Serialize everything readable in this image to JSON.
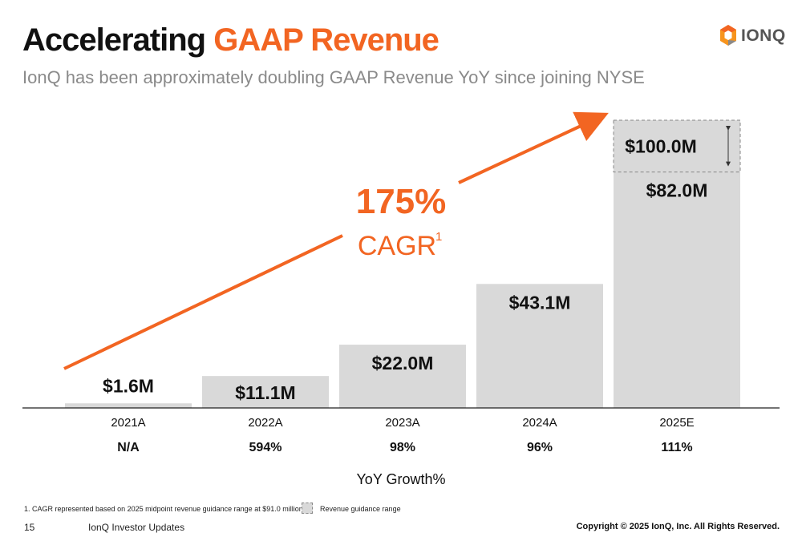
{
  "header": {
    "title_main": "Accelerating",
    "title_accent": "GAAP Revenue",
    "subtitle": "IonQ has been approximately doubling GAAP Revenue YoY since joining NYSE",
    "logo_text": "IONQ"
  },
  "colors": {
    "accent": "#f26522",
    "bar": "#d9d9d9",
    "guidance_border": "#888888"
  },
  "chart_data": {
    "type": "bar",
    "categories": [
      "2021A",
      "2022A",
      "2023A",
      "2024A",
      "2025E"
    ],
    "values": [
      1.6,
      11.1,
      22.0,
      43.1,
      82.0
    ],
    "value_labels": [
      "$1.6M",
      "$11.1M",
      "$22.0M",
      "$43.1M",
      "$82.0M"
    ],
    "guidance": {
      "category": "2025E",
      "low": 82.0,
      "high": 100.0,
      "label": "$100.0M"
    },
    "yoy_growth": [
      "N/A",
      "594%",
      "98%",
      "96%",
      "111%"
    ],
    "yoy_title": "YoY Growth%",
    "cagr": {
      "value": "175%",
      "label": "CAGR",
      "superscript": "1"
    },
    "ylim": [
      0,
      100
    ],
    "legend": {
      "label": "Revenue guidance range",
      "position": "bottom"
    },
    "grid": false
  },
  "footer": {
    "footnote": "1. CAGR represented based on 2025 midpoint revenue guidance range at $91.0 million",
    "page_number": "15",
    "doc_title": "IonQ Investor Updates",
    "copyright": "Copyright © 2025 IonQ, Inc. All Rights Reserved."
  }
}
